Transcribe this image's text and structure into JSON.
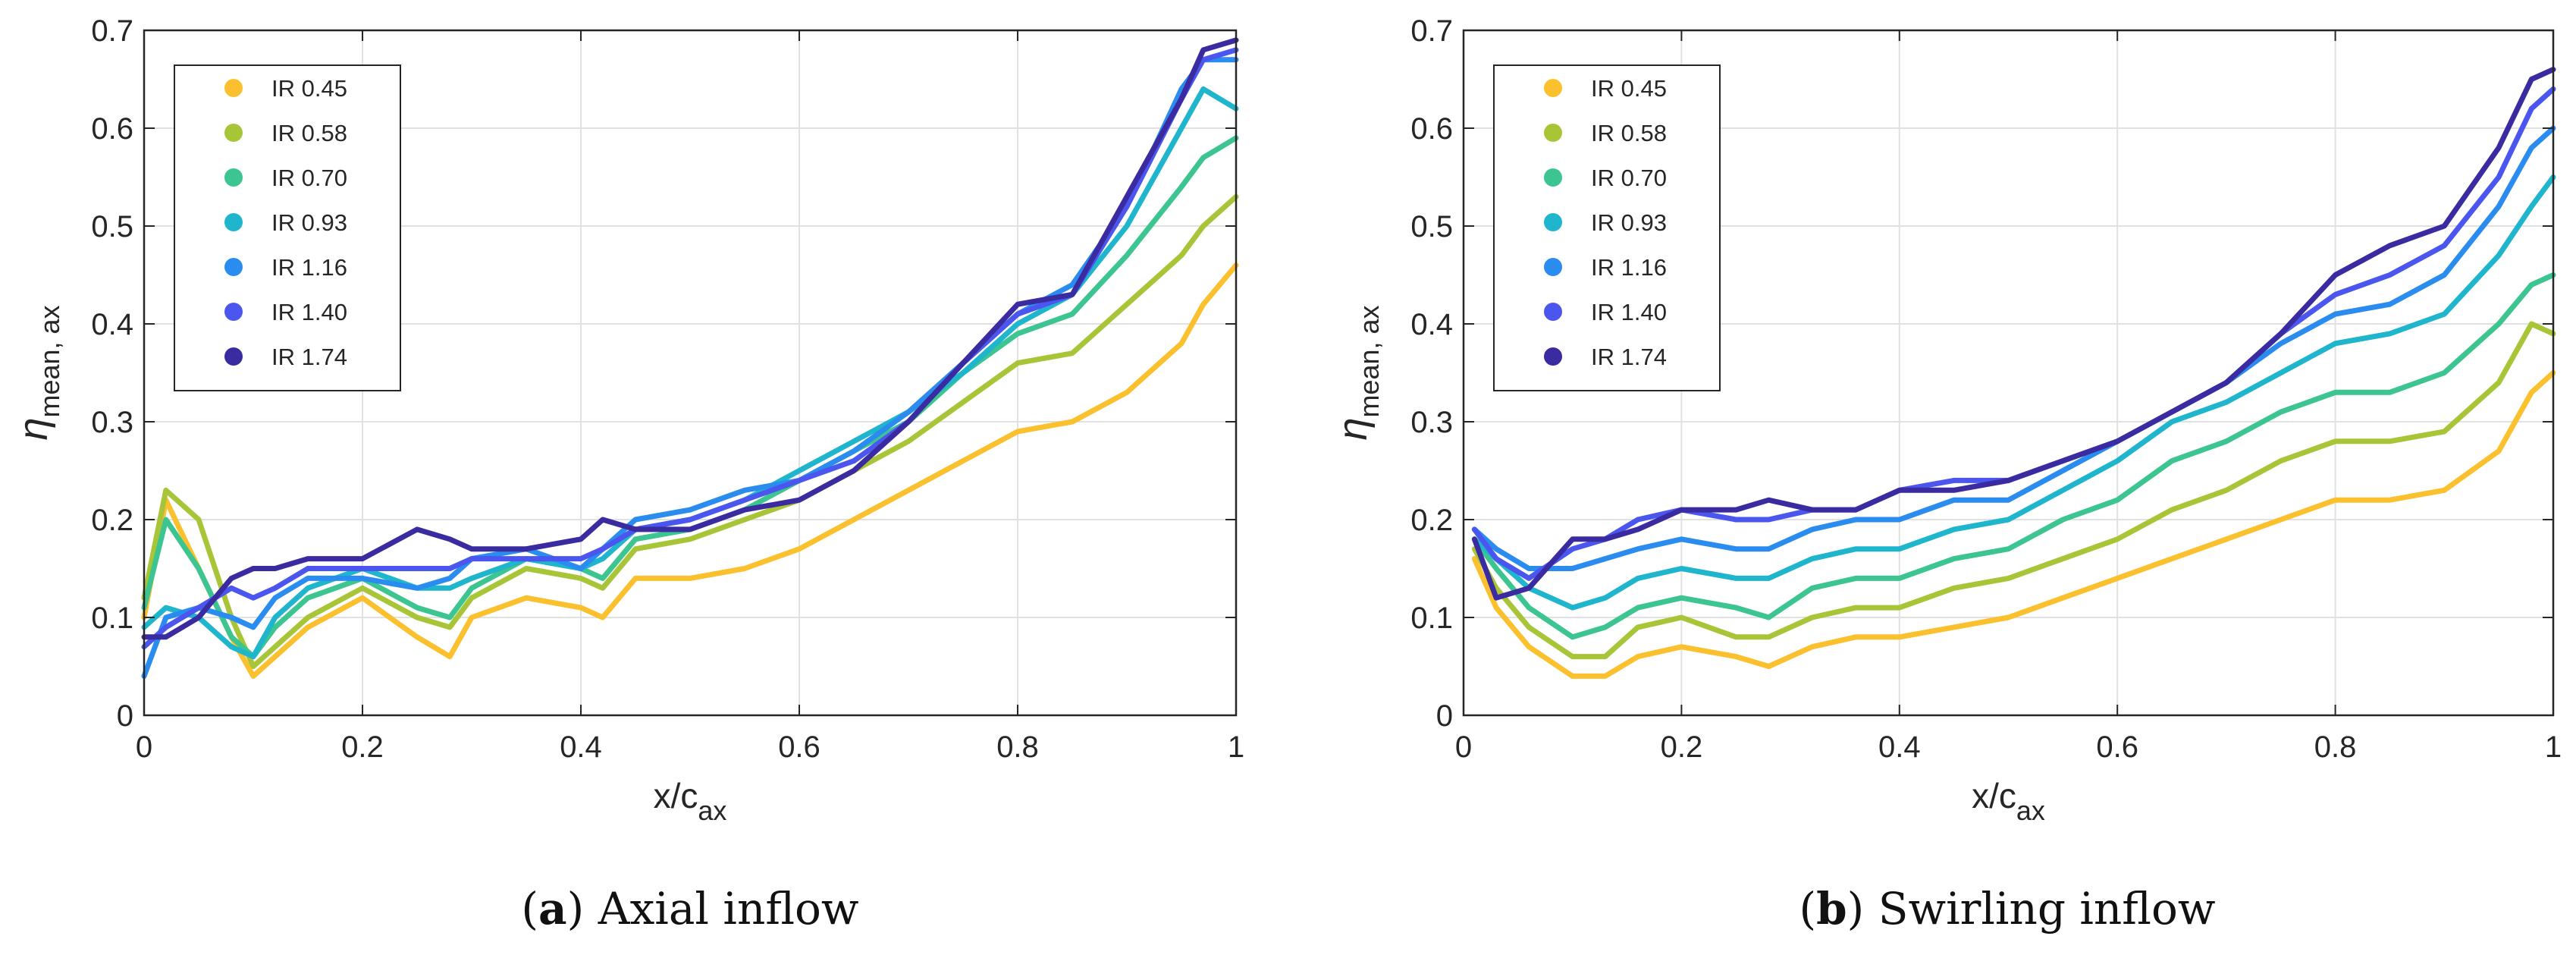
{
  "chart_data": [
    {
      "type": "line",
      "panel": "a",
      "caption_letter": "(a)",
      "caption_text": " Axial inflow",
      "xlabel_main": "x/c",
      "xlabel_sub": "ax",
      "ylabel_main": "η",
      "ylabel_sub": "mean, ax",
      "xlim": [
        0,
        1
      ],
      "ylim": [
        0,
        0.7
      ],
      "xticks": [
        "0",
        "0.2",
        "0.4",
        "0.6",
        "0.8",
        "1"
      ],
      "yticks": [
        "0",
        "0.1",
        "0.2",
        "0.3",
        "0.4",
        "0.5",
        "0.6",
        "0.7"
      ],
      "grid": true,
      "legend_position": "top-left",
      "x": [
        0.0,
        0.02,
        0.05,
        0.08,
        0.1,
        0.12,
        0.15,
        0.2,
        0.25,
        0.28,
        0.3,
        0.35,
        0.4,
        0.42,
        0.45,
        0.5,
        0.55,
        0.6,
        0.65,
        0.7,
        0.75,
        0.8,
        0.85,
        0.9,
        0.95,
        0.97,
        1.0
      ],
      "series": [
        {
          "name": "IR 0.45",
          "color": "#fbc02d",
          "values": [
            0.1,
            0.22,
            0.15,
            0.08,
            0.04,
            0.06,
            0.09,
            0.12,
            0.08,
            0.06,
            0.1,
            0.12,
            0.11,
            0.1,
            0.14,
            0.14,
            0.15,
            0.17,
            0.2,
            0.23,
            0.26,
            0.29,
            0.3,
            0.33,
            0.38,
            0.42,
            0.46
          ]
        },
        {
          "name": "IR 0.58",
          "color": "#a8c538",
          "values": [
            0.12,
            0.23,
            0.2,
            0.1,
            0.05,
            0.07,
            0.1,
            0.13,
            0.1,
            0.09,
            0.12,
            0.15,
            0.14,
            0.13,
            0.17,
            0.18,
            0.2,
            0.22,
            0.25,
            0.28,
            0.32,
            0.36,
            0.37,
            0.42,
            0.47,
            0.5,
            0.53
          ]
        },
        {
          "name": "IR 0.70",
          "color": "#3cc590",
          "values": [
            0.11,
            0.2,
            0.15,
            0.08,
            0.06,
            0.09,
            0.12,
            0.14,
            0.11,
            0.1,
            0.13,
            0.16,
            0.15,
            0.14,
            0.18,
            0.19,
            0.21,
            0.24,
            0.27,
            0.3,
            0.35,
            0.39,
            0.41,
            0.47,
            0.54,
            0.57,
            0.59
          ]
        },
        {
          "name": "IR 0.93",
          "color": "#1fb5cd",
          "values": [
            0.09,
            0.11,
            0.1,
            0.07,
            0.06,
            0.1,
            0.13,
            0.15,
            0.13,
            0.13,
            0.14,
            0.16,
            0.15,
            0.16,
            0.19,
            0.2,
            0.22,
            0.25,
            0.28,
            0.31,
            0.35,
            0.4,
            0.43,
            0.5,
            0.6,
            0.64,
            0.62
          ]
        },
        {
          "name": "IR 1.16",
          "color": "#2b8cf0",
          "values": [
            0.04,
            0.1,
            0.11,
            0.1,
            0.09,
            0.12,
            0.14,
            0.14,
            0.13,
            0.14,
            0.16,
            0.17,
            0.15,
            0.17,
            0.2,
            0.21,
            0.23,
            0.24,
            0.27,
            0.31,
            0.36,
            0.41,
            0.44,
            0.52,
            0.64,
            0.67,
            0.67
          ]
        },
        {
          "name": "IR 1.40",
          "color": "#4b56ee",
          "values": [
            0.07,
            0.09,
            0.11,
            0.13,
            0.12,
            0.13,
            0.15,
            0.15,
            0.15,
            0.15,
            0.16,
            0.16,
            0.16,
            0.17,
            0.19,
            0.2,
            0.22,
            0.24,
            0.26,
            0.3,
            0.36,
            0.41,
            0.43,
            0.52,
            0.63,
            0.67,
            0.68
          ]
        },
        {
          "name": "IR 1.74",
          "color": "#3a2ba0",
          "values": [
            0.08,
            0.08,
            0.1,
            0.14,
            0.15,
            0.15,
            0.16,
            0.16,
            0.19,
            0.18,
            0.17,
            0.17,
            0.18,
            0.2,
            0.19,
            0.19,
            0.21,
            0.22,
            0.25,
            0.3,
            0.36,
            0.42,
            0.43,
            0.53,
            0.63,
            0.68,
            0.69
          ]
        }
      ]
    },
    {
      "type": "line",
      "panel": "b",
      "caption_letter": "(b)",
      "caption_text": " Swirling inflow",
      "xlabel_main": "x/c",
      "xlabel_sub": "ax",
      "ylabel_main": "η",
      "ylabel_sub": "mean, ax",
      "xlim": [
        0,
        1
      ],
      "ylim": [
        0,
        0.7
      ],
      "xticks": [
        "0",
        "0.2",
        "0.4",
        "0.6",
        "0.8",
        "1"
      ],
      "yticks": [
        "0",
        "0.1",
        "0.2",
        "0.3",
        "0.4",
        "0.5",
        "0.6",
        "0.7"
      ],
      "grid": true,
      "legend_position": "top-left",
      "x": [
        0.01,
        0.03,
        0.06,
        0.1,
        0.13,
        0.16,
        0.2,
        0.25,
        0.28,
        0.32,
        0.36,
        0.4,
        0.45,
        0.5,
        0.55,
        0.6,
        0.65,
        0.7,
        0.75,
        0.8,
        0.85,
        0.9,
        0.95,
        0.98,
        1.0
      ],
      "series": [
        {
          "name": "IR 0.45",
          "color": "#fbc02d",
          "values": [
            0.16,
            0.11,
            0.07,
            0.04,
            0.04,
            0.06,
            0.07,
            0.06,
            0.05,
            0.07,
            0.08,
            0.08,
            0.09,
            0.1,
            0.12,
            0.14,
            0.16,
            0.18,
            0.2,
            0.22,
            0.22,
            0.23,
            0.27,
            0.33,
            0.35
          ]
        },
        {
          "name": "IR 0.58",
          "color": "#a8c538",
          "values": [
            0.17,
            0.13,
            0.09,
            0.06,
            0.06,
            0.09,
            0.1,
            0.08,
            0.08,
            0.1,
            0.11,
            0.11,
            0.13,
            0.14,
            0.16,
            0.18,
            0.21,
            0.23,
            0.26,
            0.28,
            0.28,
            0.29,
            0.34,
            0.4,
            0.39
          ]
        },
        {
          "name": "IR 0.70",
          "color": "#3cc590",
          "values": [
            0.18,
            0.15,
            0.11,
            0.08,
            0.09,
            0.11,
            0.12,
            0.11,
            0.1,
            0.13,
            0.14,
            0.14,
            0.16,
            0.17,
            0.2,
            0.22,
            0.26,
            0.28,
            0.31,
            0.33,
            0.33,
            0.35,
            0.4,
            0.44,
            0.45
          ]
        },
        {
          "name": "IR 0.93",
          "color": "#1fb5cd",
          "values": [
            0.18,
            0.16,
            0.13,
            0.11,
            0.12,
            0.14,
            0.15,
            0.14,
            0.14,
            0.16,
            0.17,
            0.17,
            0.19,
            0.2,
            0.23,
            0.26,
            0.3,
            0.32,
            0.35,
            0.38,
            0.39,
            0.41,
            0.47,
            0.52,
            0.55
          ]
        },
        {
          "name": "IR 1.16",
          "color": "#2b8cf0",
          "values": [
            0.19,
            0.17,
            0.15,
            0.15,
            0.16,
            0.17,
            0.18,
            0.17,
            0.17,
            0.19,
            0.2,
            0.2,
            0.22,
            0.22,
            0.25,
            0.28,
            0.31,
            0.34,
            0.38,
            0.41,
            0.42,
            0.45,
            0.52,
            0.58,
            0.6
          ]
        },
        {
          "name": "IR 1.40",
          "color": "#4b56ee",
          "values": [
            0.19,
            0.16,
            0.14,
            0.17,
            0.18,
            0.2,
            0.21,
            0.2,
            0.2,
            0.21,
            0.21,
            0.23,
            0.24,
            0.24,
            0.26,
            0.28,
            0.31,
            0.34,
            0.39,
            0.43,
            0.45,
            0.48,
            0.55,
            0.62,
            0.64
          ]
        },
        {
          "name": "IR 1.74",
          "color": "#3a2ba0",
          "values": [
            0.18,
            0.12,
            0.13,
            0.18,
            0.18,
            0.19,
            0.21,
            0.21,
            0.22,
            0.21,
            0.21,
            0.23,
            0.23,
            0.24,
            0.26,
            0.28,
            0.31,
            0.34,
            0.39,
            0.45,
            0.48,
            0.5,
            0.58,
            0.65,
            0.66
          ]
        }
      ]
    }
  ]
}
